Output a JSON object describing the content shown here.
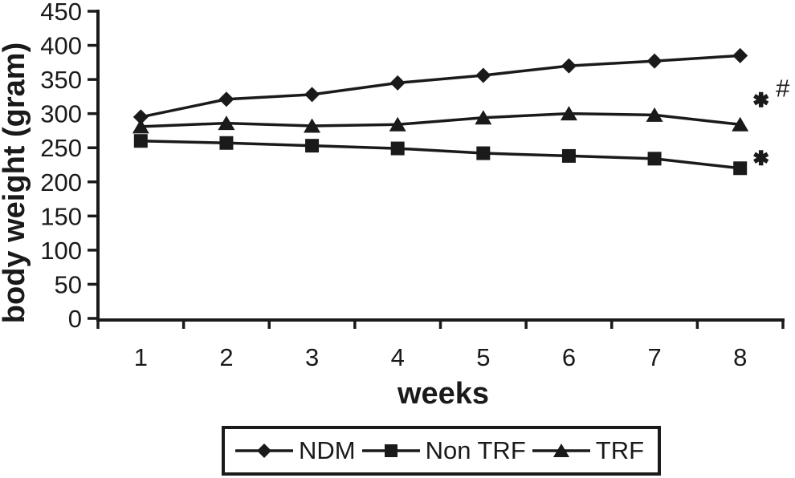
{
  "figure_title": "body weight line chart",
  "ink_color": "#1a1a1a",
  "background_color": "#ffffff",
  "chart_data": {
    "type": "line",
    "x": [
      1,
      2,
      3,
      4,
      5,
      6,
      7,
      8
    ],
    "xlabel": "weeks",
    "ylabel": "body weight (gram)",
    "ylim": [
      0,
      450
    ],
    "yticks": [
      0,
      50,
      100,
      150,
      200,
      250,
      300,
      350,
      400,
      450
    ],
    "grid": false,
    "legend_position": "bottom-boxed",
    "series": [
      {
        "name": "NDM",
        "marker": "diamond",
        "values": [
          295,
          321,
          328,
          345,
          356,
          370,
          377,
          385
        ]
      },
      {
        "name": "Non TRF",
        "marker": "square",
        "values": [
          260,
          257,
          253,
          249,
          242,
          238,
          234,
          220
        ]
      },
      {
        "name": "TRF",
        "marker": "triangle",
        "values": [
          281,
          286,
          282,
          284,
          294,
          300,
          298,
          284
        ]
      }
    ],
    "annotations": [
      {
        "symbol": "*",
        "attached_to": "TRF",
        "meaning": "significance-mark"
      },
      {
        "symbol": "#",
        "attached_to": "TRF",
        "meaning": "significance-mark"
      },
      {
        "symbol": "*",
        "attached_to": "Non TRF",
        "meaning": "significance-mark"
      }
    ]
  },
  "legend": {
    "entries": [
      "NDM",
      "Non TRF",
      "TRF"
    ]
  }
}
